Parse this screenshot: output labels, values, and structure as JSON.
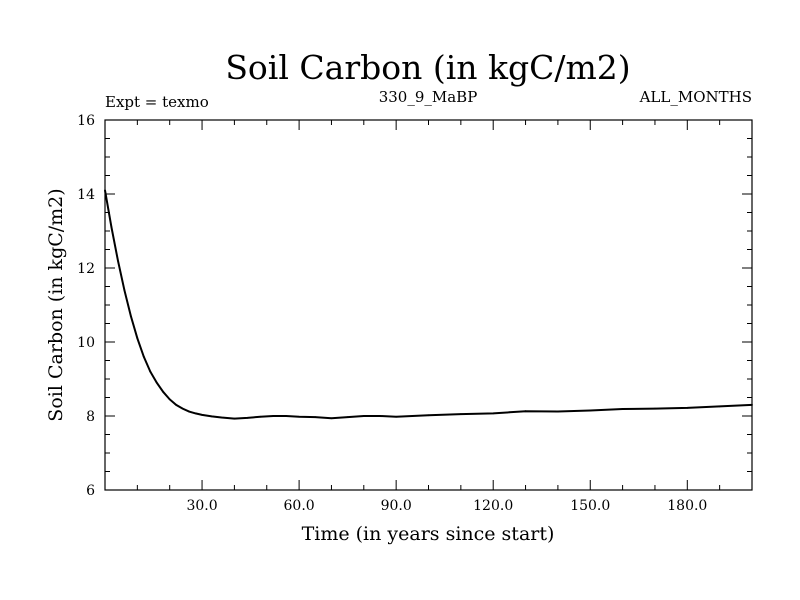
{
  "chart_data": {
    "type": "line",
    "title": "Soil Carbon (in kgC/m2)",
    "subtitle_left": "Expt = texmo",
    "subtitle_center": "330_9_MaBP",
    "subtitle_right": "ALL_MONTHS",
    "xlabel": "Time (in years since start)",
    "ylabel": "Soil Carbon (in kgC/m2)",
    "xlim": [
      0,
      200
    ],
    "ylim": [
      6,
      16
    ],
    "xticks": [
      {
        "value": 30,
        "label": "30.0"
      },
      {
        "value": 60,
        "label": "60.0"
      },
      {
        "value": 90,
        "label": "90.0"
      },
      {
        "value": 120,
        "label": "120.0"
      },
      {
        "value": 150,
        "label": "150.0"
      },
      {
        "value": 180,
        "label": "180.0"
      }
    ],
    "yticks": [
      {
        "value": 6,
        "label": "6"
      },
      {
        "value": 8,
        "label": "8"
      },
      {
        "value": 10,
        "label": "10"
      },
      {
        "value": 12,
        "label": "12"
      },
      {
        "value": 14,
        "label": "14"
      },
      {
        "value": 16,
        "label": "16"
      }
    ],
    "series": [
      {
        "name": "Soil Carbon",
        "x": [
          0,
          2,
          4,
          6,
          8,
          10,
          12,
          14,
          16,
          18,
          20,
          22,
          24,
          26,
          28,
          30,
          33,
          36,
          40,
          44,
          48,
          52,
          56,
          60,
          65,
          70,
          75,
          80,
          85,
          90,
          95,
          100,
          110,
          120,
          125,
          130,
          140,
          150,
          160,
          170,
          180,
          190,
          200
        ],
        "y": [
          14.1,
          13.1,
          12.2,
          11.4,
          10.7,
          10.1,
          9.6,
          9.2,
          8.9,
          8.65,
          8.45,
          8.3,
          8.2,
          8.12,
          8.07,
          8.03,
          7.99,
          7.96,
          7.93,
          7.95,
          7.98,
          8.0,
          8.0,
          7.98,
          7.97,
          7.94,
          7.97,
          8.0,
          8.0,
          7.98,
          8.0,
          8.02,
          8.05,
          8.07,
          8.1,
          8.13,
          8.12,
          8.15,
          8.19,
          8.2,
          8.22,
          8.26,
          8.3
        ]
      }
    ]
  }
}
